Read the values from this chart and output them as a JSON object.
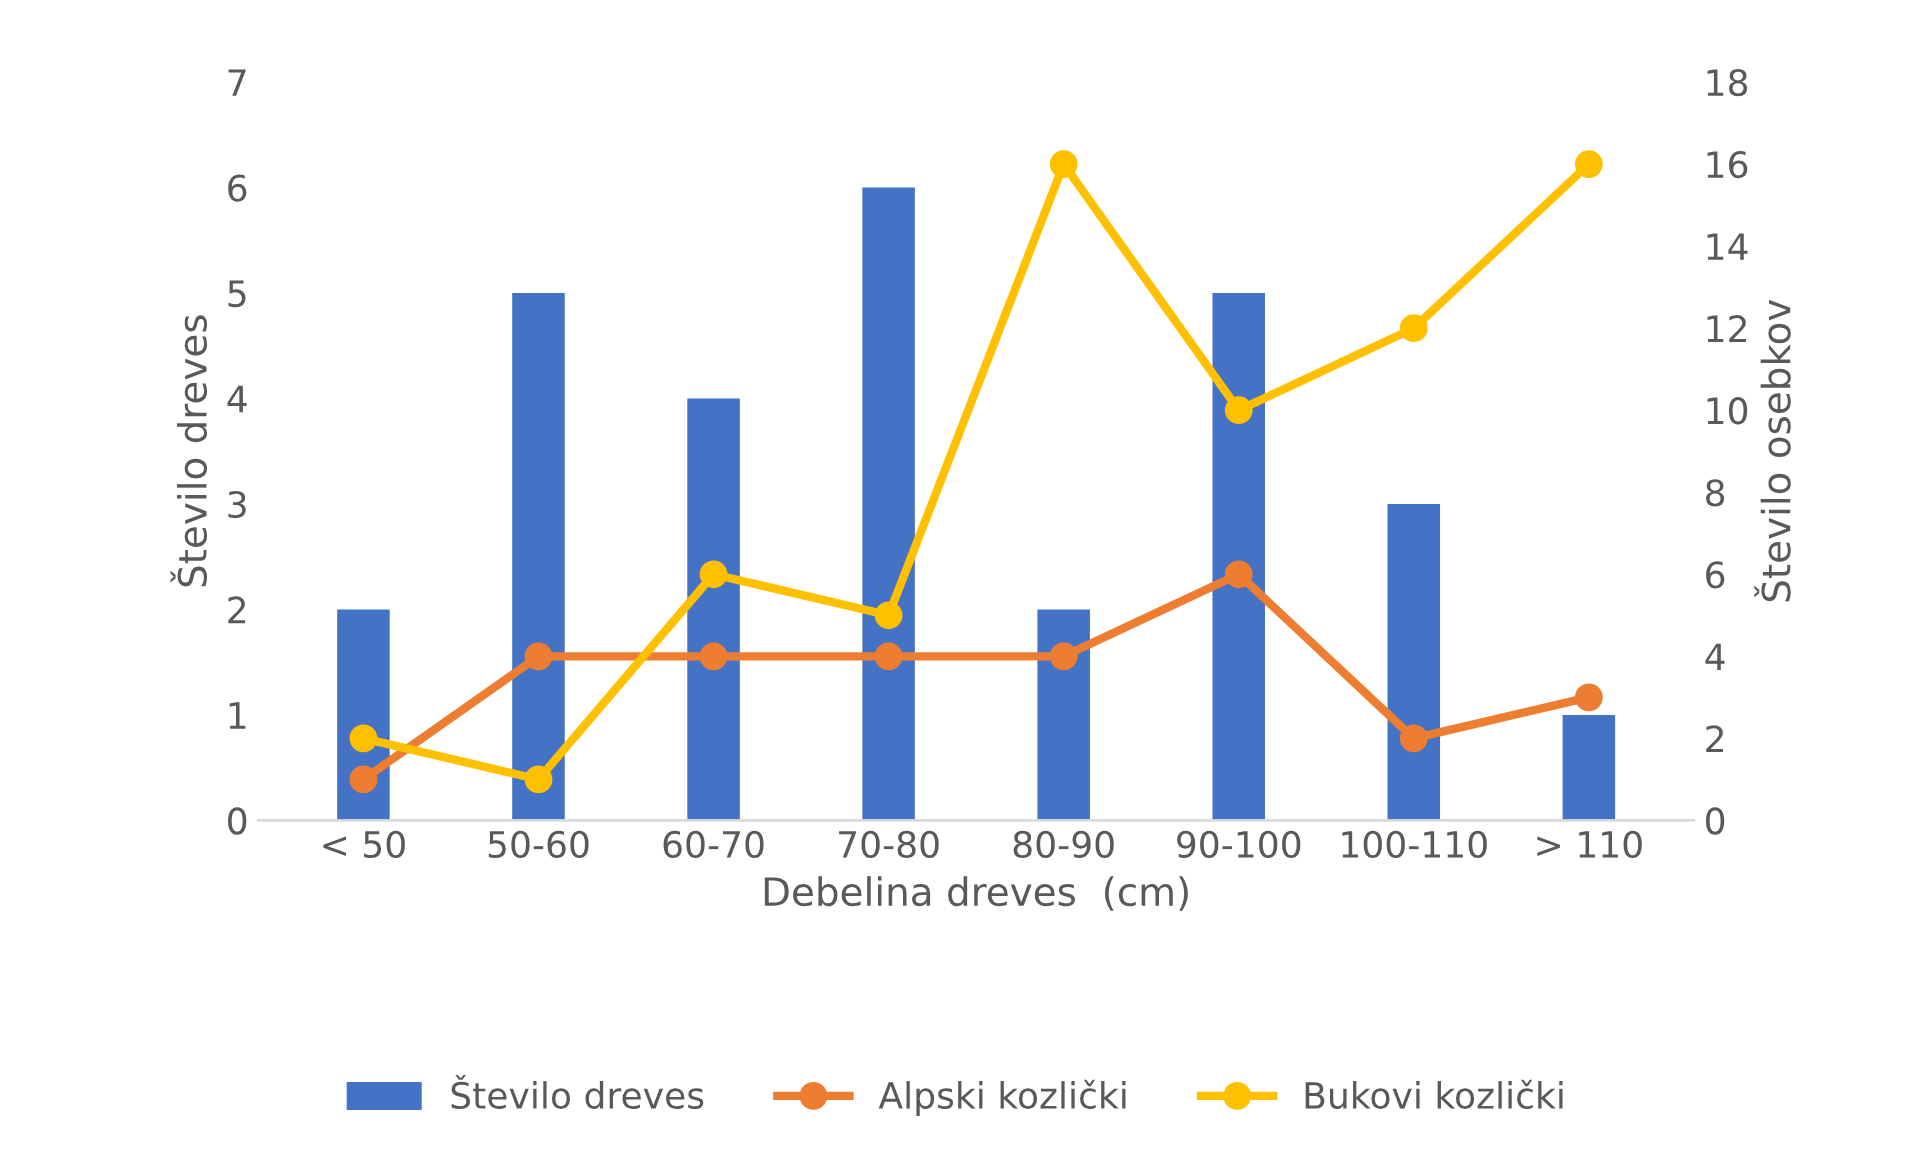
{
  "chart_data": {
    "type": "bar",
    "xlabel": "Debelina dreves  (cm)",
    "ylabel": "Število dreves",
    "y2label": "Število osebkov",
    "categories": [
      "< 50",
      "50-60",
      "60-70",
      "70-80",
      "80-90",
      "90-100",
      "100-110",
      "> 110"
    ],
    "series": [
      {
        "name": "Število dreves",
        "color": "#4472c4",
        "values": [
          2,
          5,
          4,
          6,
          2,
          5,
          3,
          1
        ]
      },
      {
        "name": "Alpski kozlički",
        "type": "line",
        "axis": "y2",
        "color": "#ed7d31",
        "values": [
          1,
          4,
          4,
          4,
          4,
          6,
          2,
          3
        ]
      },
      {
        "name": "Bukovi kozlički",
        "type": "line",
        "axis": "y2",
        "color": "#ffc000",
        "values": [
          2,
          1,
          6,
          5,
          16,
          10,
          12,
          16
        ]
      }
    ],
    "ylim": [
      0,
      7
    ],
    "yticks": [
      0,
      1,
      2,
      3,
      4,
      5,
      6,
      7
    ],
    "y2lim": [
      0,
      18
    ],
    "y2ticks": [
      0,
      2,
      4,
      6,
      8,
      10,
      12,
      14,
      16,
      18
    ],
    "grid": false,
    "legend": "bottom",
    "marker": "circle"
  }
}
